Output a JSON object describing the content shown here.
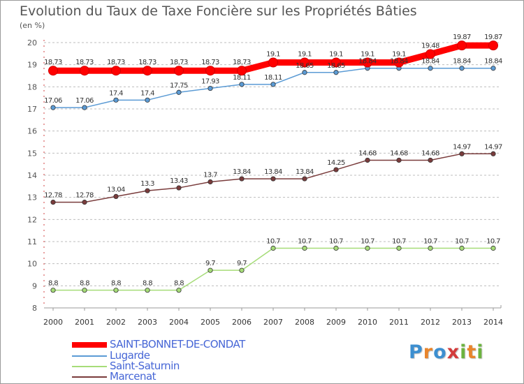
{
  "chart_data": {
    "type": "line",
    "title": "Evolution du Taux de Taxe Foncière sur les Propriétés Bâties",
    "ylabel": "(en %)",
    "xlabel": "",
    "ylim": [
      8,
      20
    ],
    "yticks": [
      "8",
      "9",
      "10",
      "11",
      "12",
      "13",
      "14",
      "15",
      "16",
      "17",
      "18",
      "19",
      "20"
    ],
    "categories": [
      "2000",
      "2001",
      "2002",
      "2003",
      "2004",
      "2005",
      "2006",
      "2007",
      "2008",
      "2009",
      "2010",
      "2011",
      "2012",
      "2013",
      "2014"
    ],
    "series": [
      {
        "name": "SAINT-BONNET-DE-CONDAT",
        "color": "#ff0000",
        "values": [
          18.73,
          18.73,
          18.73,
          18.73,
          18.73,
          18.73,
          18.73,
          19.1,
          19.1,
          19.1,
          19.1,
          19.1,
          19.48,
          19.87,
          19.87
        ],
        "labels": [
          "18.73",
          "18.73",
          "18.73",
          "18.73",
          "18.73",
          "18.73",
          "18.73",
          "19.1",
          "19.1",
          "19.1",
          "19.1",
          "19.1",
          "19.48",
          "19.87",
          "19.87"
        ]
      },
      {
        "name": "Lugarde",
        "color": "#5b9bd5",
        "values": [
          17.06,
          17.06,
          17.4,
          17.4,
          17.75,
          17.93,
          18.11,
          18.11,
          18.65,
          18.65,
          18.84,
          18.84,
          18.84,
          18.84,
          18.84
        ],
        "labels": [
          "17.06",
          "17.06",
          "17.4",
          "17.4",
          "17.75",
          "17.93",
          "18.11",
          "18.11",
          "18.65",
          "18.65",
          "18.84",
          "18.84",
          "18.84",
          "18.84",
          "18.84"
        ]
      },
      {
        "name": "Saint-Saturnin",
        "color": "#a6dc78",
        "values": [
          8.8,
          8.8,
          8.8,
          8.8,
          8.8,
          9.7,
          9.7,
          10.7,
          10.7,
          10.7,
          10.7,
          10.7,
          10.7,
          10.7,
          10.7
        ],
        "labels": [
          "8.8",
          "8.8",
          "8.8",
          "8.8",
          "8.8",
          "9.7",
          "9.7",
          "10.7",
          "10.7",
          "10.7",
          "10.7",
          "10.7",
          "10.7",
          "10.7",
          "10.7"
        ]
      },
      {
        "name": "Marcenat",
        "color": "#7a3c3c",
        "values": [
          12.78,
          12.78,
          13.04,
          13.3,
          13.43,
          13.7,
          13.84,
          13.84,
          13.84,
          14.25,
          14.68,
          14.68,
          14.68,
          14.97,
          14.97
        ],
        "labels": [
          "12.78",
          "12.78",
          "13.04",
          "13.3",
          "13.43",
          "13.7",
          "13.84",
          "13.84",
          "13.84",
          "14.25",
          "14.68",
          "14.68",
          "14.68",
          "14.97",
          "14.97"
        ]
      }
    ],
    "legend": [
      "SAINT-BONNET-DE-CONDAT",
      "Lugarde",
      "Saint-Saturnin",
      "Marcenat"
    ],
    "legend_position": "bottom-left",
    "grid": "horizontal-dashed"
  },
  "brand": {
    "text": "Proxiti",
    "letters": [
      "P",
      "r",
      "o",
      "x",
      "i",
      "t",
      "i"
    ]
  }
}
